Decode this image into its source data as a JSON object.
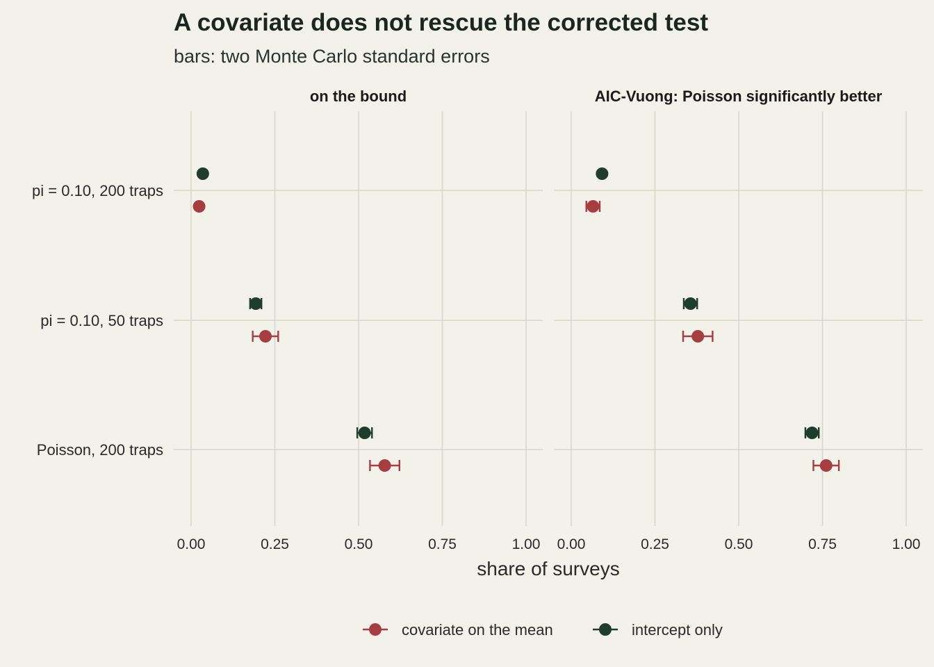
{
  "chart_data": {
    "type": "scatter",
    "title": "A covariate does not rescue the corrected test",
    "subtitle": "bars: two Monte Carlo standard errors",
    "xlabel": "share of surveys",
    "xlim": [
      0,
      1
    ],
    "x_ticks": [
      "0.00",
      "0.25",
      "0.50",
      "0.75",
      "1.00"
    ],
    "x_tick_values": [
      0,
      0.25,
      0.5,
      0.75,
      1
    ],
    "categories": [
      "pi = 0.10, 200 traps",
      "pi = 0.10, 50 traps",
      "Poisson, 200 traps"
    ],
    "legend": {
      "position": "bottom",
      "entries": [
        {
          "label": "covariate on the mean",
          "color": "#a63d40"
        },
        {
          "label": "intercept only",
          "color": "#1f3d2c"
        }
      ]
    },
    "panels": [
      {
        "title": "on the bound",
        "series": [
          {
            "name": "intercept only",
            "color": "#1f3d2c",
            "values": [
              0.035,
              0.193,
              0.518
            ],
            "errors": [
              0.004,
              0.017,
              0.022
            ]
          },
          {
            "name": "covariate on the mean",
            "color": "#a63d40",
            "values": [
              0.024,
              0.222,
              0.578
            ],
            "errors": [
              0.005,
              0.038,
              0.044
            ]
          }
        ]
      },
      {
        "title": "AIC-Vuong: Poisson significantly better",
        "series": [
          {
            "name": "intercept only",
            "color": "#1f3d2c",
            "values": [
              0.092,
              0.356,
              0.719
            ],
            "errors": [
              0.006,
              0.02,
              0.02
            ]
          },
          {
            "name": "covariate on the mean",
            "color": "#a63d40",
            "values": [
              0.065,
              0.378,
              0.761
            ],
            "errors": [
              0.02,
              0.044,
              0.038
            ]
          }
        ]
      }
    ]
  }
}
